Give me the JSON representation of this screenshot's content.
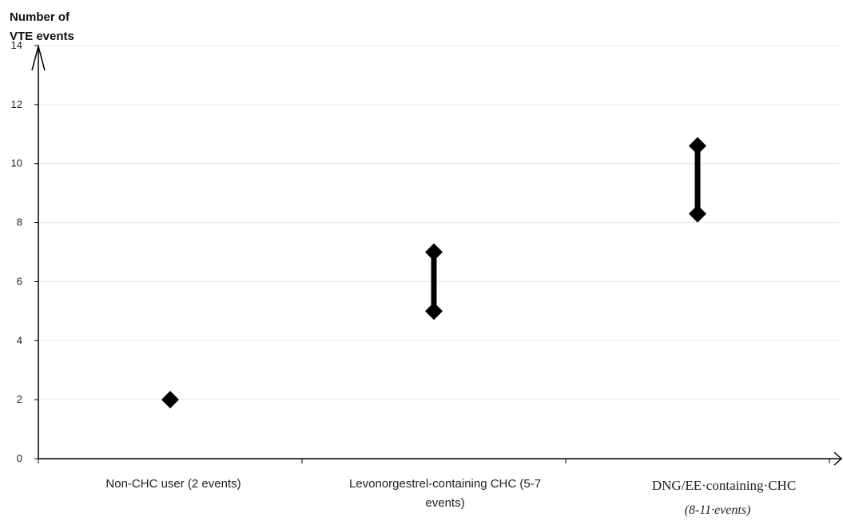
{
  "chart_data": {
    "type": "scatter",
    "title": "",
    "ylabel_lines": [
      "Number of",
      "VTE events"
    ],
    "xlabel": "",
    "ylim": [
      0,
      14
    ],
    "yticks": [
      "0",
      "2",
      "4",
      "6",
      "8",
      "10",
      "12",
      "14"
    ],
    "grid": true,
    "categories": [
      {
        "label_lines": [
          "Non-CHC user (2 events)"
        ],
        "low": 2,
        "high": 2
      },
      {
        "label_lines": [
          "Levonorgestrel-containing CHC (5-7",
          "events)"
        ],
        "low": 5,
        "high": 7
      },
      {
        "label_lines": [
          "DNG/EE·containing·CHC",
          "(8-11·events)"
        ],
        "low": 8.3,
        "high": 10.6
      }
    ],
    "colors": {
      "marker": "#000000",
      "axis": "#000000",
      "grid": "#e6e6e6"
    }
  }
}
